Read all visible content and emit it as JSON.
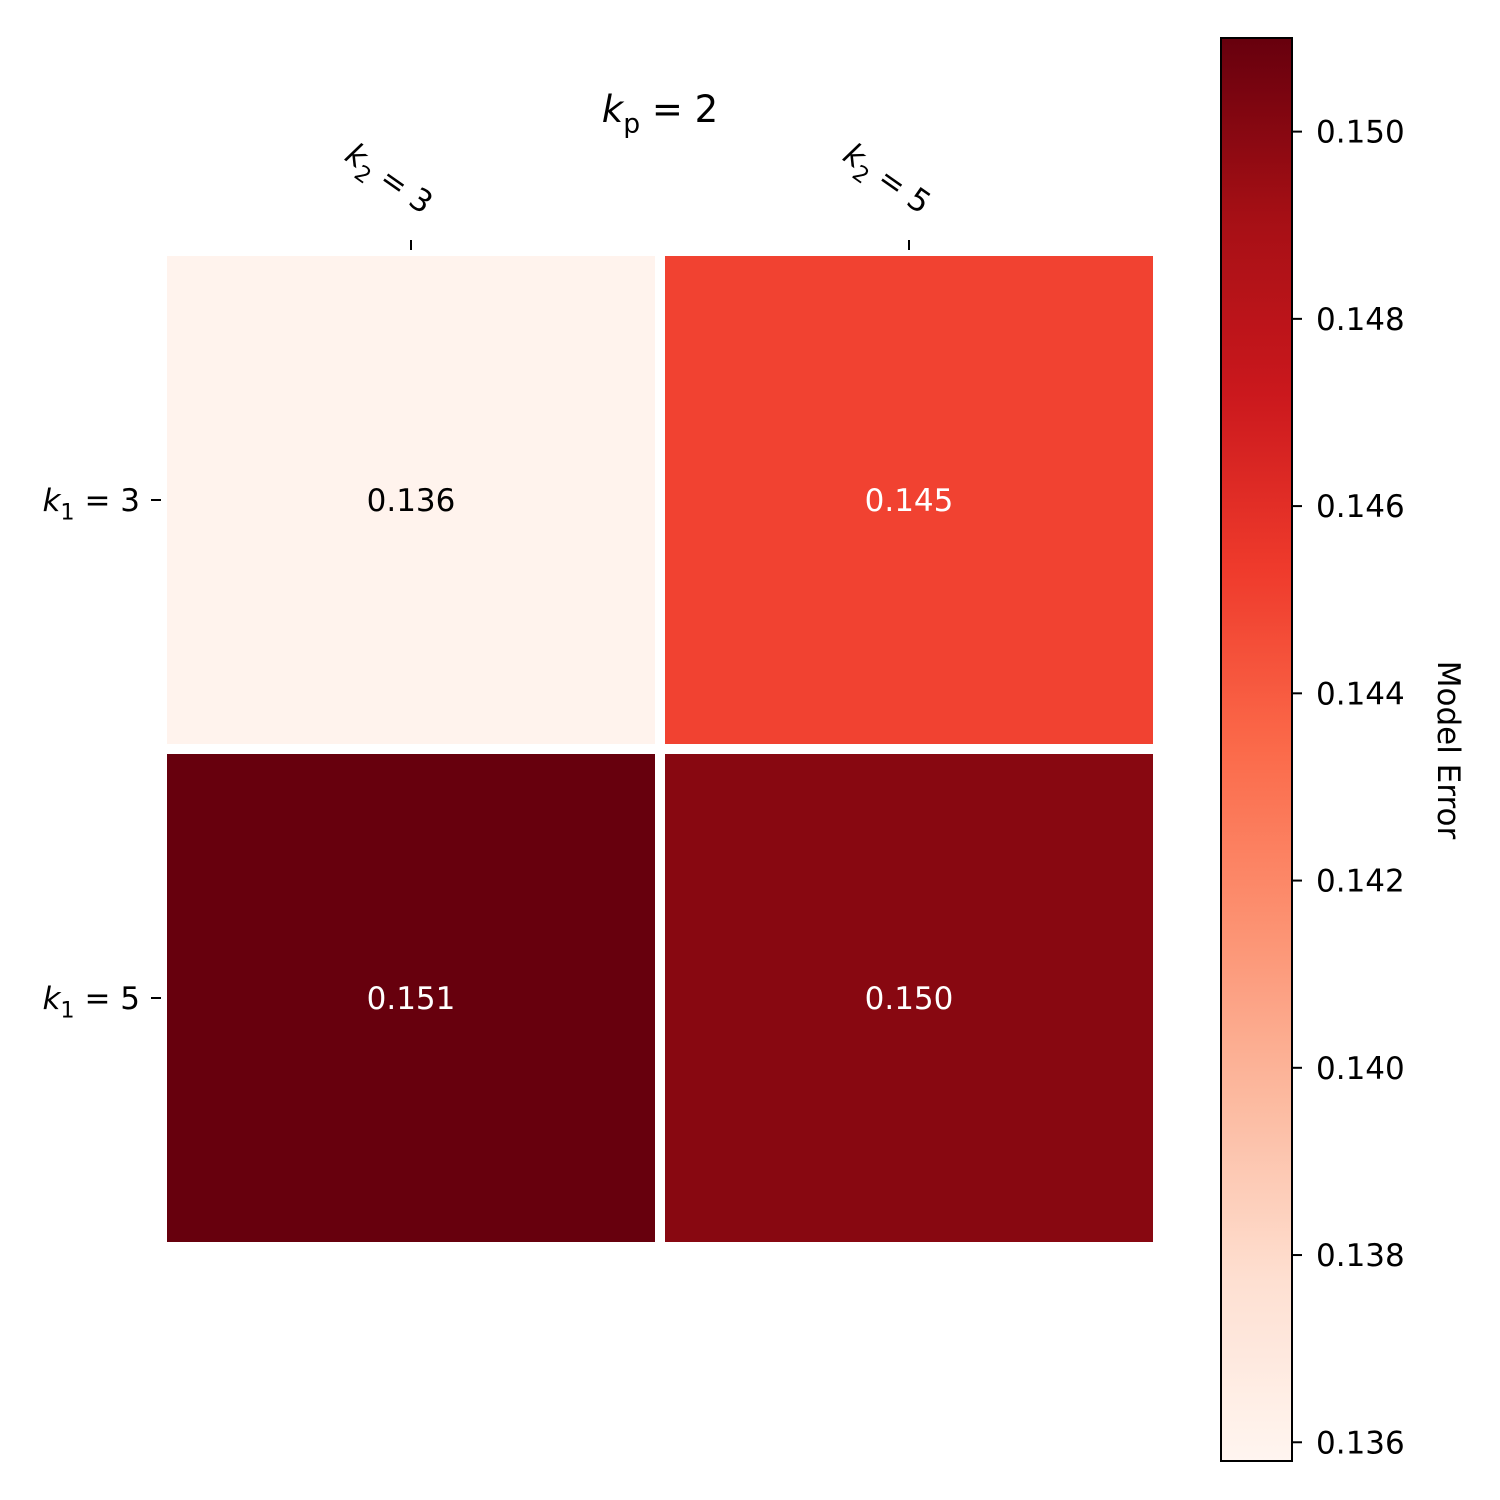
{
  "chart_data": {
    "type": "heatmap",
    "title": {
      "var": "k",
      "sub": "p",
      "rest": " = 2"
    },
    "x_tick_labels": [
      {
        "var": "k",
        "sub": "2",
        "rest": " = 3"
      },
      {
        "var": "k",
        "sub": "2",
        "rest": " = 5"
      }
    ],
    "y_tick_labels": [
      {
        "var": "k",
        "sub": "1",
        "rest": " = 3"
      },
      {
        "var": "k",
        "sub": "1",
        "rest": " = 5"
      }
    ],
    "values": [
      [
        0.136,
        0.145
      ],
      [
        0.151,
        0.15
      ]
    ],
    "cell_labels": [
      [
        "0.136",
        "0.145"
      ],
      [
        "0.151",
        "0.150"
      ]
    ],
    "colorbar": {
      "label": "Model Error",
      "min": 0.1358,
      "max": 0.151,
      "ticks": [
        0.136,
        0.138,
        0.14,
        0.142,
        0.144,
        0.146,
        0.148,
        0.15
      ],
      "tick_labels": [
        "0.136",
        "0.138",
        "0.140",
        "0.142",
        "0.144",
        "0.146",
        "0.148",
        "0.150"
      ],
      "colormap": "Reds",
      "colormap_stops": [
        "#fff5f0",
        "#fee0d2",
        "#fcbba1",
        "#fc9272",
        "#fb6a4a",
        "#ef3b2c",
        "#cb181d",
        "#a50f15",
        "#67000d"
      ]
    },
    "grid": false
  }
}
